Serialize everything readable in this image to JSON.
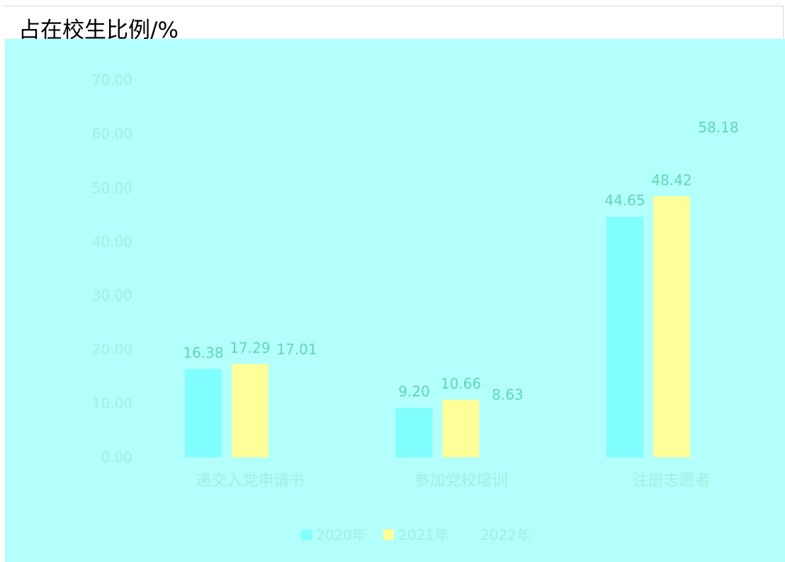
{
  "colors": {
    "panel_bg": "#b3fffc",
    "axis_text": "#9df0df",
    "data_label": "#5fd6b2",
    "series": [
      "#80ffff",
      "#ffff99",
      "#b3fffc"
    ]
  },
  "chart_data": {
    "type": "bar",
    "title": "占在校生比例/%",
    "categories": [
      "递交入党申请书",
      "参加党校培训",
      "注册志愿者"
    ],
    "series": [
      {
        "name": "2020年",
        "values": [
          16.38,
          9.2,
          44.65
        ]
      },
      {
        "name": "2021年",
        "values": [
          17.29,
          10.66,
          48.42
        ]
      },
      {
        "name": "2022年",
        "values": [
          17.01,
          8.63,
          58.18
        ]
      }
    ],
    "value_labels": [
      [
        "16.38",
        "9.20",
        "44.65"
      ],
      [
        "17.29",
        "10.66",
        "48.42"
      ],
      [
        "17.01",
        "8.63",
        "58.18"
      ]
    ],
    "ylim": [
      0,
      70
    ],
    "yticks": [
      "0.00",
      "10.00",
      "20.00",
      "30.00",
      "40.00",
      "50.00",
      "60.00",
      "70.00"
    ],
    "grid": false,
    "legend_position": "bottom"
  }
}
